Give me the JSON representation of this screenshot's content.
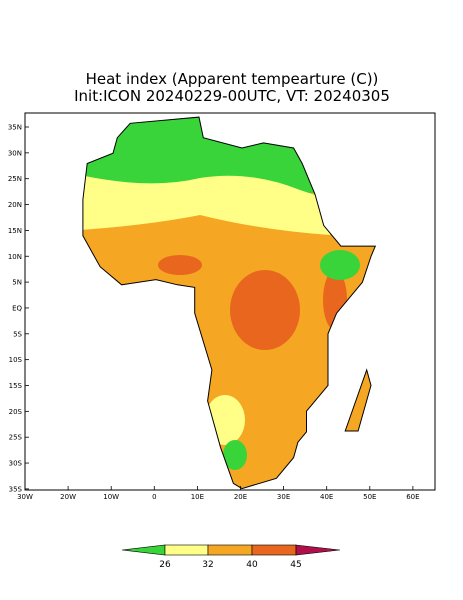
{
  "title": "Heat index (Apparent tempearture (C))",
  "subtitle": "Init:ICON 20240229-00UTC, VT: 20240305",
  "lat_labels": [
    "35N",
    "30N",
    "25N",
    "20N",
    "15N",
    "10N",
    "5N",
    "EQ",
    "5S",
    "10S",
    "15S",
    "20S",
    "25S",
    "30S",
    "35S"
  ],
  "lon_labels": [
    "30W",
    "20W",
    "10W",
    "0",
    "10E",
    "20E",
    "30E",
    "40E",
    "50E",
    "60E"
  ],
  "colorbar": {
    "labels": [
      26,
      32,
      40,
      45
    ]
  }
}
